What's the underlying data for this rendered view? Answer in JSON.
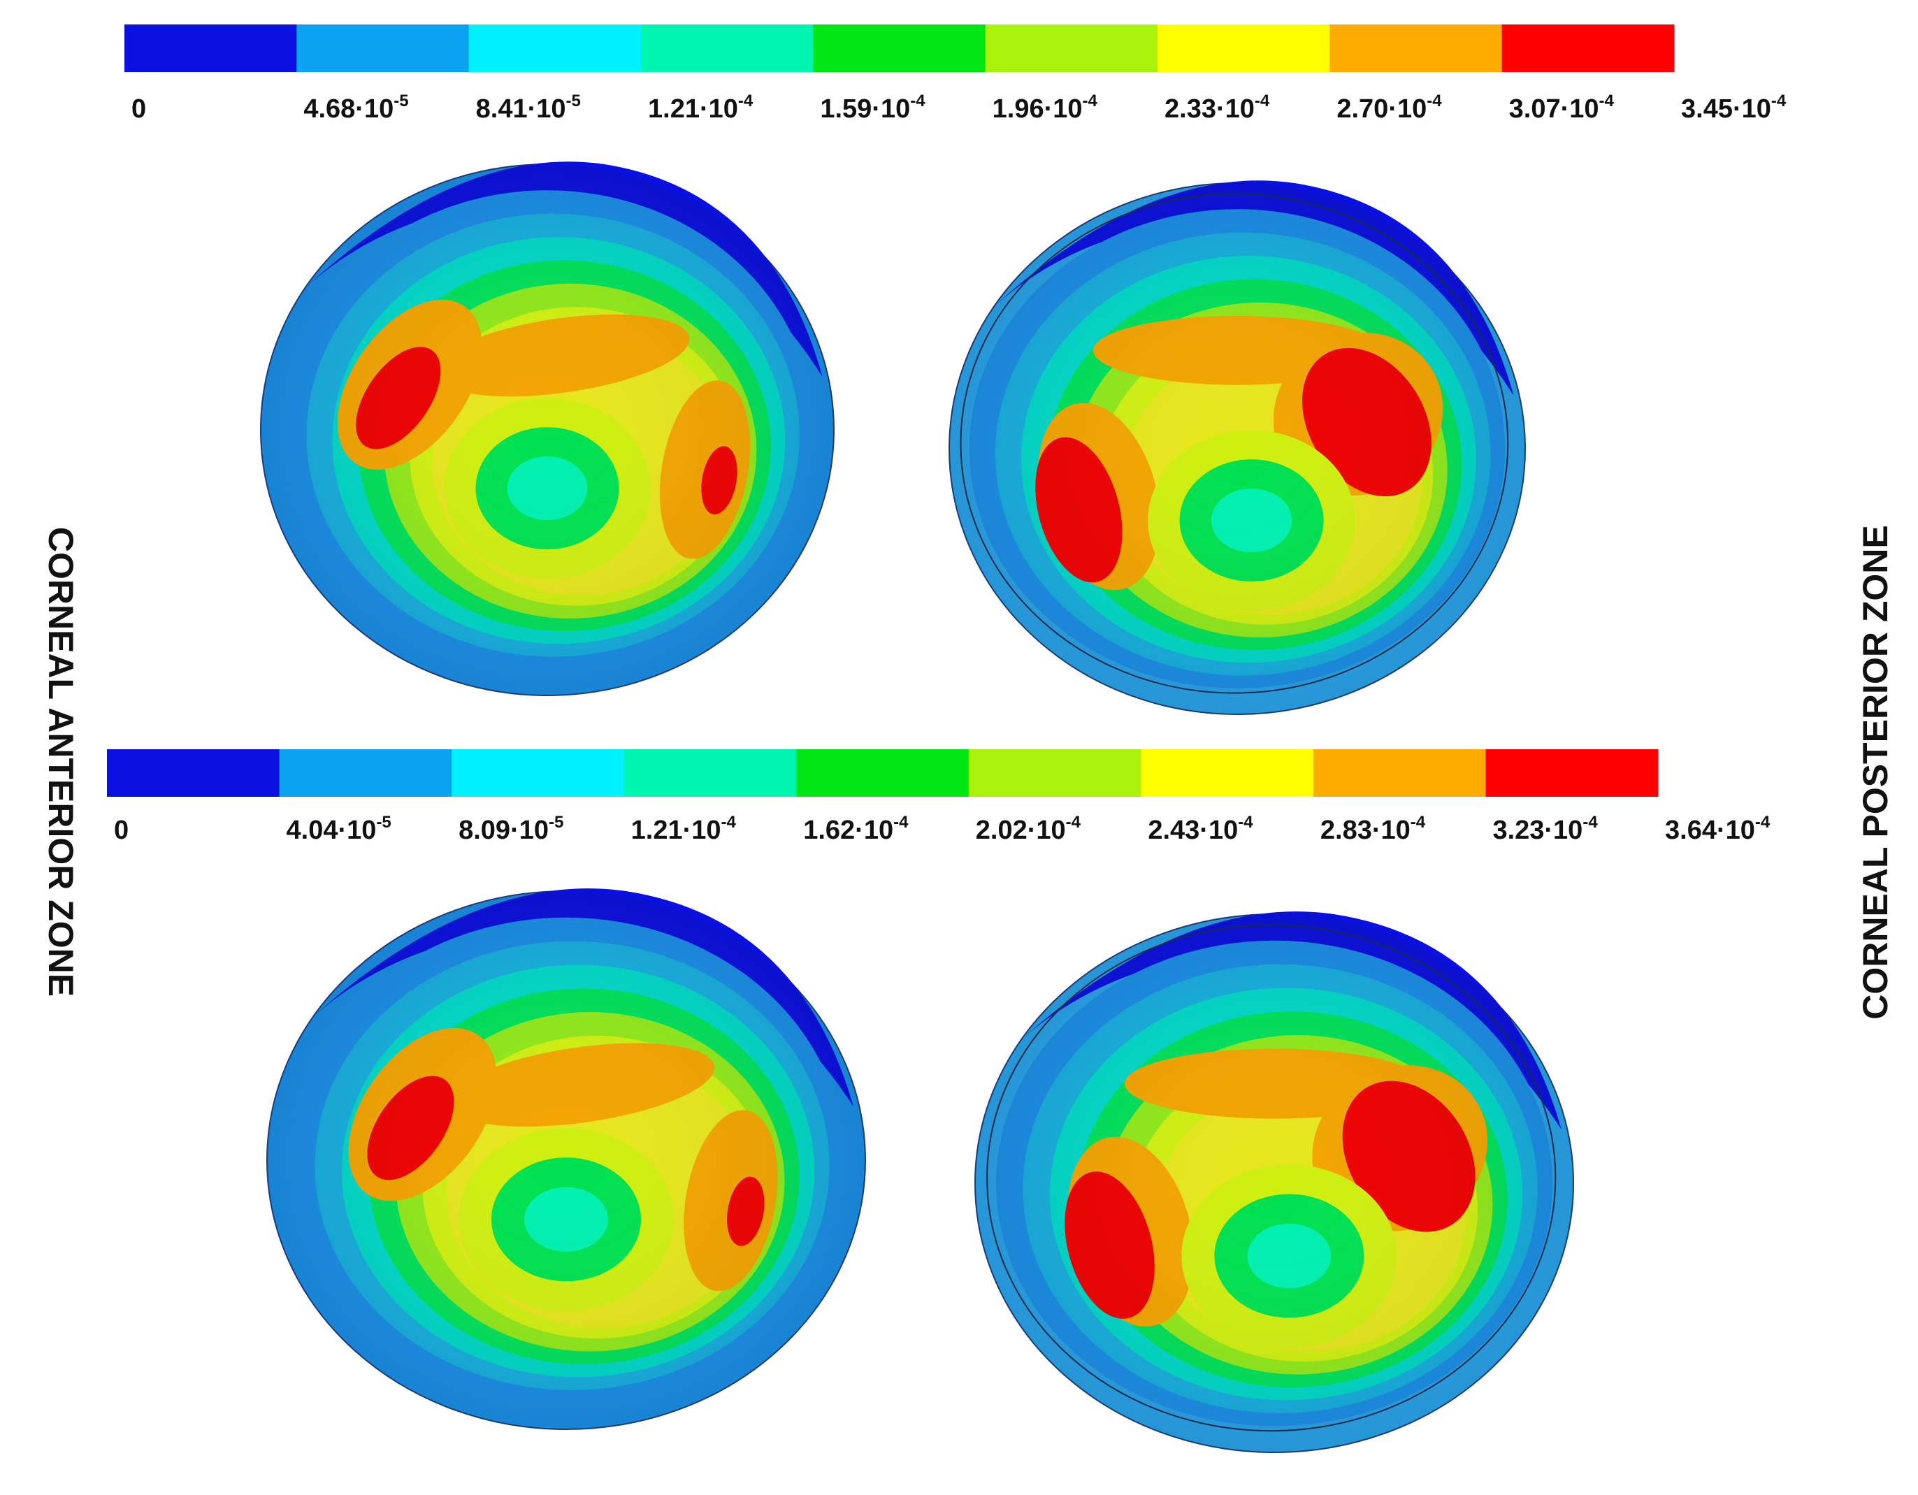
{
  "figure": {
    "labels": {
      "left": "CORNEAL ANTERIOR ZONE",
      "right": "CORNEAL  POSTERIOR  ZONE"
    },
    "legends": [
      {
        "colors": [
          "#0a10e0",
          "#0ca2f2",
          "#00f2ff",
          "#00f6b0",
          "#00e614",
          "#a8f20c",
          "#ffff00",
          "#ffaa00",
          "#ff0000"
        ],
        "ticks": [
          {
            "m": "0",
            "e": ""
          },
          {
            "m": "4.68·10",
            "e": "-5"
          },
          {
            "m": "8.41·10",
            "e": "-5"
          },
          {
            "m": "1.21·10",
            "e": "-4"
          },
          {
            "m": "1.59·10",
            "e": "-4"
          },
          {
            "m": "1.96·10",
            "e": "-4"
          },
          {
            "m": "2.33·10",
            "e": "-4"
          },
          {
            "m": "2.70·10",
            "e": "-4"
          },
          {
            "m": "3.07·10",
            "e": "-4"
          },
          {
            "m": "3.45·10",
            "e": "-4"
          }
        ]
      },
      {
        "colors": [
          "#0a10e0",
          "#0ca2f2",
          "#00f2ff",
          "#00f6b0",
          "#00e614",
          "#a8f20c",
          "#ffff00",
          "#ffaa00",
          "#ff0000"
        ],
        "ticks": [
          {
            "m": "0",
            "e": ""
          },
          {
            "m": "4.04·10",
            "e": "-5"
          },
          {
            "m": "8.09·10",
            "e": "-5"
          },
          {
            "m": "1.21·10",
            "e": "-4"
          },
          {
            "m": "1.62·10",
            "e": "-4"
          },
          {
            "m": "2.02·10",
            "e": "-4"
          },
          {
            "m": "2.43·10",
            "e": "-4"
          },
          {
            "m": "2.83·10",
            "e": "-4"
          },
          {
            "m": "3.23·10",
            "e": "-4"
          },
          {
            "m": "3.64·10",
            "e": "-4"
          }
        ]
      }
    ],
    "contour_colors": {
      "outer": "#0a10e0",
      "bands": [
        "#1a8ee6",
        "#16aede",
        "#00d8c8",
        "#00e05a",
        "#90e81a",
        "#cfef10",
        "#e6e61e"
      ],
      "hot": "#f2a400",
      "peak": "#ee0000",
      "center": [
        "#00e050",
        "#00f0b0"
      ]
    }
  }
}
